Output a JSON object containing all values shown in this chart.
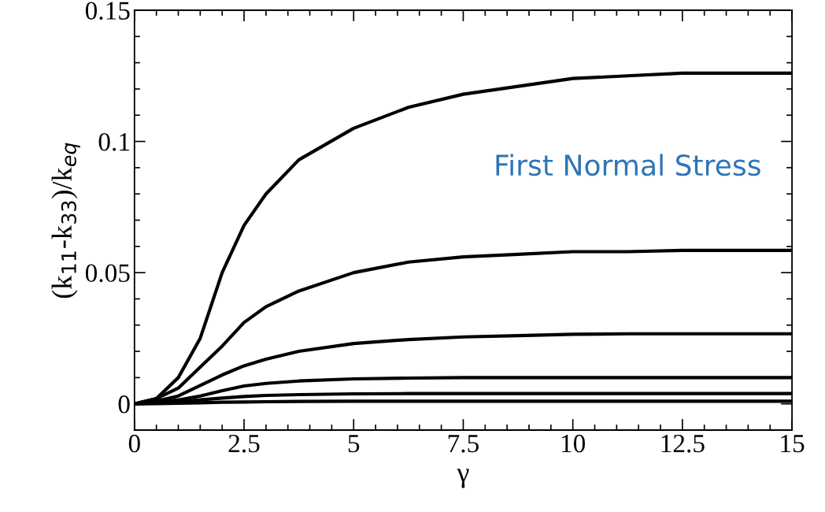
{
  "chart_data": {
    "type": "line",
    "xlabel": "γ",
    "ylabel": "(k$_{11}$-k$_{33}$)/k$_{eq}$",
    "x": [
      0,
      0.5,
      1,
      1.5,
      2,
      2.5,
      3,
      3.75,
      5,
      6.25,
      7.5,
      8.75,
      10,
      11.25,
      12.5,
      13.75,
      15
    ],
    "series": [
      {
        "color": "#000000",
        "values": [
          0,
          0.002,
          0.01,
          0.025,
          0.05,
          0.068,
          0.08,
          0.093,
          0.105,
          0.113,
          0.118,
          0.121,
          0.124,
          0.125,
          0.126,
          0.126,
          0.126
        ]
      },
      {
        "color": "#000000",
        "values": [
          0,
          0.002,
          0.006,
          0.014,
          0.022,
          0.031,
          0.037,
          0.043,
          0.05,
          0.054,
          0.056,
          0.057,
          0.058,
          0.058,
          0.0585,
          0.0585,
          0.0585
        ]
      },
      {
        "color": "#000000",
        "values": [
          0,
          0.001,
          0.003,
          0.007,
          0.011,
          0.0145,
          0.017,
          0.02,
          0.023,
          0.0245,
          0.0255,
          0.026,
          0.0265,
          0.0267,
          0.0267,
          0.0267,
          0.0267
        ]
      },
      {
        "color": "#000000",
        "values": [
          0,
          0.0005,
          0.0015,
          0.003,
          0.005,
          0.0068,
          0.0078,
          0.0087,
          0.0095,
          0.0098,
          0.01,
          0.01,
          0.01,
          0.01,
          0.01,
          0.01,
          0.01
        ]
      },
      {
        "color": "#000000",
        "values": [
          0,
          0.0003,
          0.0008,
          0.0015,
          0.0022,
          0.0028,
          0.0032,
          0.0035,
          0.0038,
          0.0039,
          0.0039,
          0.0039,
          0.0039,
          0.0039,
          0.0039,
          0.0039,
          0.0039
        ]
      },
      {
        "color": "#000000",
        "values": [
          0,
          0.0001,
          0.0002,
          0.0004,
          0.0006,
          0.0007,
          0.0008,
          0.0009,
          0.001,
          0.001,
          0.001,
          0.001,
          0.001,
          0.001,
          0.001,
          0.001,
          0.001
        ]
      }
    ],
    "xlim": [
      0,
      15
    ],
    "xticks": [
      0,
      2.5,
      5,
      7.5,
      10,
      12.5,
      15
    ],
    "ylim": [
      -0.01,
      0.15
    ],
    "yticks": [
      0,
      0.05,
      0.1,
      0.15
    ],
    "annotations": [
      "First Normal Stress"
    ],
    "grid": false
  }
}
